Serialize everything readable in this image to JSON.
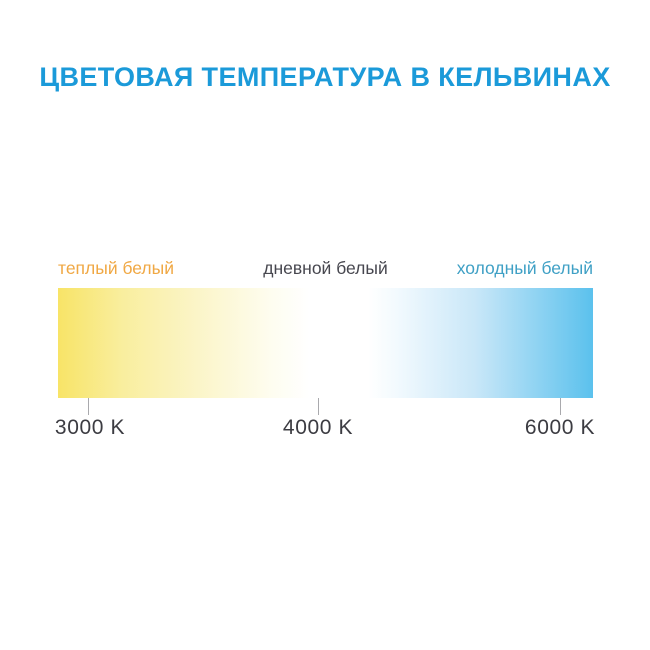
{
  "title": "ЦВЕТОВАЯ ТЕМПЕРАТУРА В КЕЛЬВИНАХ",
  "colors": {
    "title": "#1b9ad9",
    "warm_label": "#f0a844",
    "day_label": "#47474f",
    "cold_label": "#3fa0c5",
    "temp_label": "#3c3c42",
    "tick_line": "#a9a9ad",
    "gradient_warm_end": "#f8e467",
    "gradient_middle": "#ffffff",
    "gradient_cold_end": "#5bc1ed"
  },
  "chart_data": {
    "type": "heatmap",
    "subtype": "horizontal-color-temperature-scale",
    "title": "ЦВЕТОВАЯ ТЕМПЕРАТУРА В КЕЛЬВИНАХ",
    "axis_ticks": [
      "3000 K",
      "4000 K",
      "6000 K"
    ],
    "axis_tick_values_kelvin": [
      3000,
      4000,
      6000
    ],
    "axis_range_kelvin": [
      3000,
      6000
    ],
    "grid": false,
    "legend_position": "above-bar",
    "zones": [
      {
        "label": "теплый белый",
        "tick": "3000 K",
        "kelvin": 3000,
        "label_color": "#f0a844",
        "bar_color": "#f8e467"
      },
      {
        "label": "дневной белый",
        "tick": "4000 K",
        "kelvin": 4000,
        "label_color": "#47474f",
        "bar_color": "#ffffff"
      },
      {
        "label": "холодный белый",
        "tick": "6000 K",
        "kelvin": 6000,
        "label_color": "#3fa0c5",
        "bar_color": "#5bc1ed"
      }
    ],
    "gradient_stops": [
      {
        "color": "#f8e467",
        "pos": "0%"
      },
      {
        "color": "#f9ee9e",
        "pos": "12%"
      },
      {
        "color": "#fbf5c8",
        "pos": "26%"
      },
      {
        "color": "#fefdf0",
        "pos": "40%"
      },
      {
        "color": "#ffffff",
        "pos": "47%"
      },
      {
        "color": "#ffffff",
        "pos": "58%"
      },
      {
        "color": "#f3fafe",
        "pos": "63%"
      },
      {
        "color": "#c9e7f8",
        "pos": "78%"
      },
      {
        "color": "#5bc1ed",
        "pos": "100%"
      }
    ]
  }
}
